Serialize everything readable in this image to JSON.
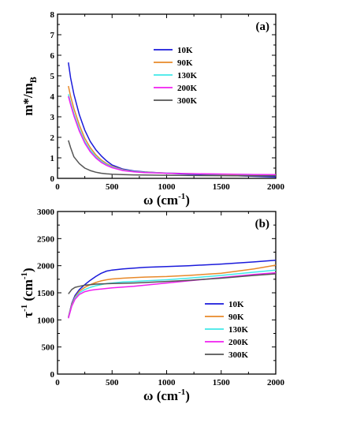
{
  "chart_data": [
    {
      "type": "line",
      "panel_label": "(a)",
      "xlabel": "ω (cm",
      "xlabel_sup": "-1",
      "xlabel_end": ")",
      "ylabel": "m*/m",
      "ylabel_sub": "B",
      "xlim": [
        0,
        2000
      ],
      "ylim": [
        0,
        8
      ],
      "xticks": [
        0,
        500,
        1000,
        1500,
        2000
      ],
      "yticks": [
        0,
        1,
        2,
        3,
        4,
        5,
        6,
        7,
        8
      ],
      "grid": false,
      "legend_position": "top-center",
      "series": [
        {
          "name": "10K",
          "color": "#1a1adb",
          "x": [
            100,
            120,
            150,
            200,
            250,
            300,
            350,
            400,
            450,
            500,
            600,
            700,
            800,
            1000,
            1200,
            1500,
            1800,
            2000
          ],
          "y": [
            5.65,
            4.9,
            4.1,
            3.1,
            2.35,
            1.8,
            1.4,
            1.1,
            0.85,
            0.65,
            0.45,
            0.36,
            0.31,
            0.25,
            0.2,
            0.15,
            0.1,
            0.07
          ]
        },
        {
          "name": "90K",
          "color": "#e8892a",
          "x": [
            100,
            120,
            150,
            200,
            250,
            300,
            350,
            400,
            450,
            500,
            600,
            700,
            800,
            1000,
            1200,
            1500,
            1800,
            2000
          ],
          "y": [
            4.5,
            4.0,
            3.4,
            2.6,
            1.95,
            1.5,
            1.15,
            0.9,
            0.72,
            0.58,
            0.42,
            0.34,
            0.3,
            0.26,
            0.23,
            0.19,
            0.16,
            0.14
          ]
        },
        {
          "name": "130K",
          "color": "#40e8e8",
          "x": [
            100,
            120,
            150,
            200,
            250,
            300,
            350,
            400,
            450,
            500,
            600,
            700,
            800,
            1000,
            1200,
            1500,
            1800,
            2000
          ],
          "y": [
            4.1,
            3.7,
            3.15,
            2.4,
            1.8,
            1.38,
            1.06,
            0.84,
            0.67,
            0.55,
            0.4,
            0.33,
            0.29,
            0.26,
            0.23,
            0.2,
            0.18,
            0.16
          ]
        },
        {
          "name": "200K",
          "color": "#f020f0",
          "x": [
            100,
            120,
            150,
            200,
            250,
            300,
            350,
            400,
            450,
            500,
            600,
            700,
            800,
            1000,
            1200,
            1500,
            1800,
            2000
          ],
          "y": [
            4.0,
            3.6,
            3.05,
            2.3,
            1.72,
            1.3,
            1.0,
            0.78,
            0.63,
            0.52,
            0.38,
            0.32,
            0.28,
            0.25,
            0.23,
            0.21,
            0.19,
            0.18
          ]
        },
        {
          "name": "300K",
          "color": "#555555",
          "x": [
            100,
            120,
            150,
            200,
            250,
            300,
            350,
            400,
            450,
            500,
            600,
            700,
            800,
            1000,
            1200,
            1500,
            1800,
            2000
          ],
          "y": [
            1.85,
            1.5,
            1.05,
            0.72,
            0.5,
            0.38,
            0.3,
            0.25,
            0.22,
            0.2,
            0.18,
            0.17,
            0.16,
            0.15,
            0.14,
            0.13,
            0.12,
            0.12
          ]
        }
      ]
    },
    {
      "type": "line",
      "panel_label": "(b)",
      "xlabel": "ω (cm",
      "xlabel_sup": "-1",
      "xlabel_end": ")",
      "ylabel": "τ",
      "ylabel_sup": "-1",
      "ylabel_end": " (cm",
      "ylabel_sup2": "-1",
      "ylabel_end2": ")",
      "xlim": [
        0,
        2000
      ],
      "ylim": [
        0,
        3000
      ],
      "xticks": [
        0,
        500,
        1000,
        1500,
        2000
      ],
      "yticks": [
        0,
        500,
        1000,
        1500,
        2000,
        2500,
        3000
      ],
      "grid": false,
      "legend_position": "lower-right",
      "series": [
        {
          "name": "10K",
          "color": "#1a1adb",
          "x": [
            100,
            130,
            160,
            200,
            250,
            300,
            350,
            400,
            450,
            500,
            600,
            700,
            800,
            1000,
            1200,
            1500,
            1800,
            2000
          ],
          "y": [
            1050,
            1300,
            1450,
            1560,
            1650,
            1730,
            1800,
            1860,
            1900,
            1920,
            1940,
            1955,
            1970,
            1985,
            2000,
            2030,
            2070,
            2100
          ]
        },
        {
          "name": "90K",
          "color": "#e8892a",
          "x": [
            100,
            130,
            160,
            200,
            250,
            300,
            350,
            400,
            450,
            500,
            600,
            700,
            800,
            1000,
            1200,
            1500,
            1800,
            2000
          ],
          "y": [
            1050,
            1280,
            1420,
            1530,
            1600,
            1650,
            1690,
            1720,
            1740,
            1755,
            1770,
            1780,
            1790,
            1800,
            1820,
            1860,
            1940,
            2010
          ]
        },
        {
          "name": "130K",
          "color": "#40e8e8",
          "x": [
            100,
            130,
            160,
            200,
            250,
            300,
            350,
            400,
            450,
            500,
            600,
            700,
            800,
            1000,
            1200,
            1500,
            1800,
            2000
          ],
          "y": [
            1040,
            1260,
            1400,
            1500,
            1560,
            1600,
            1630,
            1650,
            1670,
            1680,
            1700,
            1710,
            1720,
            1740,
            1770,
            1820,
            1880,
            1920
          ]
        },
        {
          "name": "200K",
          "color": "#f020f0",
          "x": [
            100,
            130,
            160,
            200,
            250,
            300,
            350,
            400,
            450,
            500,
            600,
            700,
            800,
            1000,
            1200,
            1500,
            1800,
            2000
          ],
          "y": [
            1030,
            1250,
            1380,
            1470,
            1520,
            1545,
            1560,
            1570,
            1580,
            1590,
            1605,
            1620,
            1640,
            1680,
            1720,
            1780,
            1840,
            1870
          ]
        },
        {
          "name": "300K",
          "color": "#555555",
          "x": [
            100,
            130,
            160,
            200,
            250,
            300,
            350,
            400,
            450,
            500,
            600,
            700,
            800,
            1000,
            1200,
            1500,
            1800,
            2000
          ],
          "y": [
            1480,
            1560,
            1600,
            1620,
            1640,
            1650,
            1660,
            1665,
            1668,
            1670,
            1675,
            1680,
            1690,
            1710,
            1730,
            1770,
            1820,
            1850
          ]
        }
      ]
    }
  ]
}
